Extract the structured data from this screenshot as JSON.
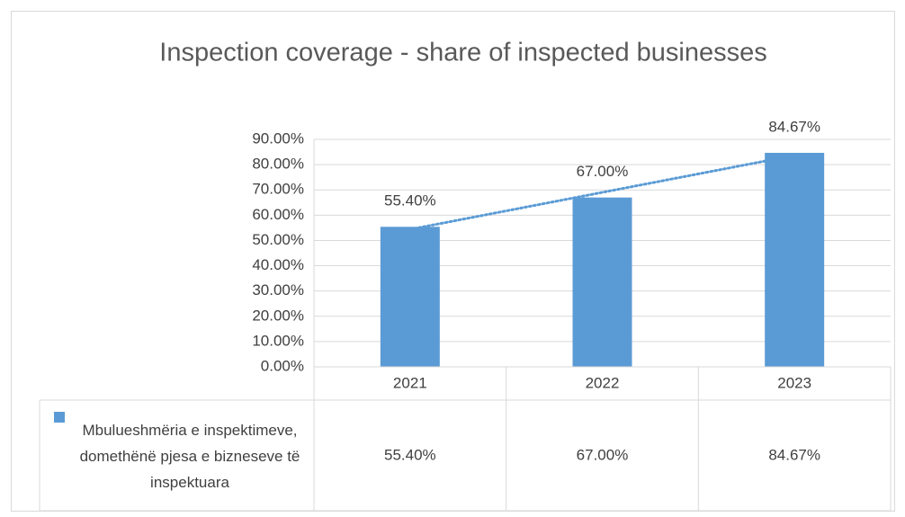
{
  "chart_data": {
    "type": "bar",
    "title": "Inspection coverage - share of inspected businesses",
    "categories": [
      "2021",
      "2022",
      "2023"
    ],
    "series": [
      {
        "name": "Mbulueshmëria e inspektimeve, domethënë pjesa e bizneseve të inspektuara",
        "color": "#5b9bd5",
        "values": [
          55.4,
          67,
          84.67
        ],
        "value_labels": [
          "55.40%",
          "67.00%",
          "84.67%"
        ]
      }
    ],
    "ylim": [
      0,
      90
    ],
    "yticks": [
      {
        "value": 0,
        "label": "0.00%"
      },
      {
        "value": 10,
        "label": "10.00%"
      },
      {
        "value": 20,
        "label": "20.00%"
      },
      {
        "value": 30,
        "label": "30.00%"
      },
      {
        "value": 40,
        "label": "40.00%"
      },
      {
        "value": 50,
        "label": "50.00%"
      },
      {
        "value": 60,
        "label": "60.00%"
      },
      {
        "value": 70,
        "label": "70.00%"
      },
      {
        "value": 80,
        "label": "80.00%"
      },
      {
        "value": 90,
        "label": "90.00%"
      }
    ],
    "grid": true,
    "trendline": "linear",
    "data_table": true
  }
}
